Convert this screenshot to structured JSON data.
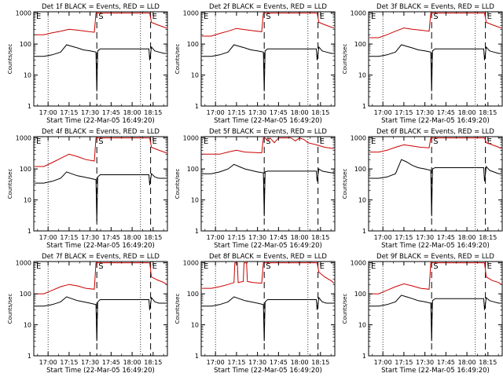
{
  "colors": {
    "events": "#000000",
    "lld": "#cc0000",
    "axis": "#000000"
  },
  "common": {
    "xlabel": "Start Time (22-Mar-05 16:49:20)",
    "ylabel": "Counts/sec",
    "xticks": [
      "17:00",
      "17:15",
      "17:30",
      "17:45",
      "18:00",
      "18:15"
    ],
    "yticks": [
      "1",
      "10",
      "100",
      "1000"
    ],
    "markers": {
      "dotted": [
        17.0,
        18.1
      ],
      "dashed": [
        17.58,
        18.22
      ]
    },
    "marker_labels": [
      "E",
      "S",
      "E"
    ]
  },
  "chart_data": [
    {
      "type": "line",
      "title": "Det 1f BLACK = Events, RED = LLD",
      "xlim": [
        16.83,
        18.42
      ],
      "ylim": [
        1,
        1100
      ],
      "yscale": "log",
      "series": [
        {
          "name": "Events",
          "x": [
            16.84,
            16.95,
            17.05,
            17.15,
            17.22,
            17.28,
            17.35,
            17.42,
            17.5,
            17.57,
            17.58,
            17.59,
            17.62,
            17.7,
            17.8,
            17.95,
            18.1,
            18.2,
            18.21,
            18.23,
            18.27,
            18.32,
            18.38,
            18.41
          ],
          "values": [
            40,
            40,
            45,
            55,
            95,
            85,
            75,
            65,
            60,
            55,
            3,
            60,
            70,
            70,
            70,
            70,
            70,
            70,
            30,
            80,
            60,
            55,
            50,
            50
          ]
        },
        {
          "name": "LLD",
          "x": [
            16.84,
            16.95,
            17.05,
            17.15,
            17.25,
            17.35,
            17.45,
            17.55,
            17.57,
            17.59,
            17.63,
            17.7,
            17.8,
            17.95,
            18.1,
            18.2,
            18.21,
            18.23,
            18.3,
            18.38,
            18.41
          ],
          "values": [
            200,
            200,
            230,
            260,
            300,
            280,
            260,
            240,
            1000,
            1000,
            1000,
            1000,
            1000,
            1000,
            1000,
            1000,
            1000,
            500,
            420,
            350,
            330
          ]
        }
      ]
    },
    {
      "type": "line",
      "title": "Det 2f BLACK = Events, RED = LLD",
      "xlim": [
        16.83,
        18.42
      ],
      "ylim": [
        1,
        1100
      ],
      "yscale": "log",
      "series": [
        {
          "name": "Events",
          "x": [
            16.84,
            16.95,
            17.05,
            17.15,
            17.22,
            17.28,
            17.35,
            17.42,
            17.5,
            17.57,
            17.58,
            17.59,
            17.62,
            17.7,
            17.8,
            17.95,
            18.1,
            18.2,
            18.21,
            18.23,
            18.27,
            18.32,
            18.38,
            18.41
          ],
          "values": [
            40,
            40,
            45,
            55,
            95,
            85,
            75,
            65,
            60,
            55,
            3,
            60,
            70,
            70,
            70,
            70,
            70,
            70,
            30,
            80,
            60,
            55,
            50,
            50
          ]
        },
        {
          "name": "LLD",
          "x": [
            16.84,
            16.95,
            17.05,
            17.15,
            17.25,
            17.35,
            17.45,
            17.55,
            17.57,
            17.59,
            17.63,
            17.7,
            17.8,
            17.95,
            18.1,
            18.2,
            18.21,
            18.23,
            18.3,
            18.38,
            18.41
          ],
          "values": [
            180,
            180,
            220,
            260,
            320,
            290,
            270,
            250,
            1000,
            1000,
            1000,
            1000,
            1000,
            1000,
            1000,
            1000,
            1000,
            500,
            420,
            350,
            330
          ]
        }
      ]
    },
    {
      "type": "line",
      "title": "Det 3f BLACK = Events, RED = LLD",
      "xlim": [
        16.83,
        18.42
      ],
      "ylim": [
        1,
        1100
      ],
      "yscale": "log",
      "series": [
        {
          "name": "Events",
          "x": [
            16.84,
            16.95,
            17.05,
            17.15,
            17.22,
            17.28,
            17.35,
            17.42,
            17.5,
            17.57,
            17.58,
            17.59,
            17.62,
            17.7,
            17.8,
            17.95,
            18.1,
            18.2,
            18.21,
            18.23,
            18.27,
            18.32,
            18.38,
            18.41
          ],
          "values": [
            40,
            40,
            45,
            55,
            95,
            85,
            75,
            65,
            60,
            55,
            3,
            60,
            70,
            70,
            70,
            70,
            70,
            70,
            30,
            80,
            60,
            55,
            50,
            50
          ]
        },
        {
          "name": "LLD",
          "x": [
            16.84,
            16.95,
            17.05,
            17.15,
            17.25,
            17.35,
            17.45,
            17.55,
            17.57,
            17.59,
            17.63,
            17.7,
            17.8,
            17.95,
            18.1,
            18.2,
            18.21,
            18.23,
            18.3,
            18.38,
            18.41
          ],
          "values": [
            160,
            160,
            200,
            260,
            330,
            300,
            280,
            260,
            1000,
            1000,
            1000,
            1000,
            1000,
            1000,
            1000,
            1000,
            1000,
            500,
            420,
            350,
            330
          ]
        }
      ]
    },
    {
      "type": "line",
      "title": "Det 4f BLACK = Events, RED = LLD",
      "xlim": [
        16.83,
        18.42
      ],
      "ylim": [
        1,
        1100
      ],
      "yscale": "log",
      "series": [
        {
          "name": "Events",
          "x": [
            16.84,
            16.95,
            17.05,
            17.15,
            17.22,
            17.28,
            17.35,
            17.42,
            17.5,
            17.57,
            17.58,
            17.59,
            17.62,
            17.7,
            17.8,
            17.95,
            18.1,
            18.2,
            18.21,
            18.23,
            18.27,
            18.32,
            18.38,
            18.41
          ],
          "values": [
            35,
            35,
            40,
            50,
            80,
            70,
            60,
            55,
            50,
            45,
            2,
            55,
            65,
            65,
            65,
            65,
            65,
            65,
            30,
            70,
            55,
            50,
            50,
            50
          ]
        },
        {
          "name": "LLD",
          "x": [
            16.84,
            16.95,
            17.05,
            17.15,
            17.25,
            17.35,
            17.45,
            17.55,
            17.57,
            17.59,
            17.63,
            17.7,
            17.8,
            17.95,
            18.1,
            18.2,
            18.21,
            18.23,
            18.3,
            18.38,
            18.41
          ],
          "values": [
            120,
            120,
            160,
            220,
            300,
            250,
            200,
            180,
            1000,
            1000,
            1000,
            1000,
            1000,
            1000,
            1000,
            1000,
            1000,
            500,
            420,
            350,
            330
          ]
        }
      ]
    },
    {
      "type": "line",
      "title": "Det 5f BLACK = Events, RED = LLD",
      "xlim": [
        16.83,
        18.42
      ],
      "ylim": [
        1,
        1100
      ],
      "yscale": "log",
      "series": [
        {
          "name": "Events",
          "x": [
            16.84,
            16.95,
            17.05,
            17.15,
            17.22,
            17.28,
            17.35,
            17.42,
            17.5,
            17.57,
            17.58,
            17.59,
            17.62,
            17.7,
            17.8,
            17.95,
            18.1,
            18.2,
            18.21,
            18.23,
            18.27,
            18.32,
            18.38,
            18.41
          ],
          "values": [
            70,
            70,
            80,
            100,
            140,
            120,
            100,
            90,
            80,
            75,
            3,
            80,
            85,
            85,
            85,
            85,
            85,
            85,
            40,
            100,
            85,
            80,
            75,
            75
          ]
        },
        {
          "name": "LLD",
          "x": [
            16.84,
            16.95,
            17.05,
            17.15,
            17.25,
            17.35,
            17.45,
            17.55,
            17.57,
            17.59,
            17.62,
            17.65,
            17.7,
            17.75,
            17.8,
            17.9,
            17.95,
            18.0,
            18.05,
            18.1,
            18.2,
            18.3,
            18.41
          ],
          "values": [
            300,
            300,
            300,
            350,
            400,
            350,
            340,
            330,
            1000,
            1000,
            800,
            1000,
            700,
            1000,
            1000,
            1000,
            800,
            1000,
            900,
            700,
            600,
            500,
            450
          ]
        }
      ]
    },
    {
      "type": "line",
      "title": "Det 6f BLACK = Events, RED = LLD",
      "xlim": [
        16.83,
        18.42
      ],
      "ylim": [
        1,
        1100
      ],
      "yscale": "log",
      "series": [
        {
          "name": "Events",
          "x": [
            16.84,
            16.95,
            17.05,
            17.15,
            17.22,
            17.28,
            17.35,
            17.42,
            17.5,
            17.57,
            17.58,
            17.59,
            17.62,
            17.7,
            17.8,
            17.95,
            18.1,
            18.2,
            18.21,
            18.23,
            18.27,
            18.32,
            18.38,
            18.41
          ],
          "values": [
            50,
            50,
            55,
            70,
            200,
            170,
            130,
            110,
            100,
            90,
            3,
            100,
            110,
            110,
            110,
            110,
            110,
            110,
            40,
            120,
            90,
            80,
            70,
            70
          ]
        },
        {
          "name": "LLD",
          "x": [
            16.84,
            16.95,
            17.05,
            17.15,
            17.25,
            17.35,
            17.45,
            17.55,
            17.57,
            17.59,
            17.63,
            17.7,
            17.8,
            17.95,
            18.1,
            18.2,
            18.21,
            18.23,
            18.3,
            18.38,
            18.41
          ],
          "values": [
            350,
            350,
            400,
            500,
            600,
            550,
            500,
            480,
            1000,
            1000,
            1000,
            1000,
            1000,
            1000,
            1000,
            1000,
            1000,
            700,
            600,
            500,
            450
          ]
        }
      ]
    },
    {
      "type": "line",
      "title": "Det 7f BLACK = Events, RED = LLD",
      "xlim": [
        16.83,
        18.42
      ],
      "ylim": [
        1,
        1100
      ],
      "yscale": "log",
      "series": [
        {
          "name": "Events",
          "x": [
            16.84,
            16.95,
            17.05,
            17.15,
            17.22,
            17.28,
            17.35,
            17.42,
            17.5,
            17.57,
            17.58,
            17.59,
            17.62,
            17.7,
            17.8,
            17.95,
            18.1,
            18.2,
            18.21,
            18.23,
            18.27,
            18.32,
            18.38,
            18.41
          ],
          "values": [
            40,
            40,
            45,
            55,
            80,
            70,
            60,
            55,
            50,
            45,
            3,
            55,
            65,
            65,
            65,
            65,
            65,
            65,
            30,
            75,
            55,
            50,
            50,
            50
          ]
        },
        {
          "name": "LLD",
          "x": [
            16.84,
            16.95,
            17.05,
            17.15,
            17.25,
            17.35,
            17.45,
            17.55,
            17.57,
            17.59,
            17.63,
            17.7,
            17.8,
            17.95,
            18.1,
            18.2,
            18.21,
            18.23,
            18.3,
            18.38,
            18.41
          ],
          "values": [
            100,
            100,
            130,
            170,
            200,
            180,
            150,
            140,
            1000,
            1000,
            1000,
            1000,
            1000,
            1000,
            1000,
            1000,
            1000,
            350,
            280,
            230,
            200
          ]
        }
      ]
    },
    {
      "type": "line",
      "title": "Det 8f BLACK = Events, RED = LLD",
      "xlim": [
        16.83,
        18.42
      ],
      "ylim": [
        1,
        1100
      ],
      "yscale": "log",
      "series": [
        {
          "name": "Events",
          "x": [
            16.84,
            16.95,
            17.05,
            17.15,
            17.22,
            17.28,
            17.35,
            17.42,
            17.5,
            17.57,
            17.58,
            17.59,
            17.62,
            17.7,
            17.8,
            17.95,
            18.1,
            18.2,
            18.21,
            18.23,
            18.27,
            18.32,
            18.38,
            18.41
          ],
          "values": [
            40,
            40,
            45,
            55,
            80,
            70,
            60,
            55,
            50,
            45,
            3,
            55,
            65,
            65,
            65,
            65,
            65,
            65,
            30,
            75,
            55,
            50,
            50,
            50
          ]
        },
        {
          "name": "LLD",
          "x": [
            16.84,
            16.95,
            17.05,
            17.15,
            17.22,
            17.23,
            17.26,
            17.27,
            17.33,
            17.34,
            17.37,
            17.38,
            17.45,
            17.55,
            17.57,
            17.59,
            17.63,
            17.7,
            17.8,
            17.95,
            18.1,
            18.2,
            18.21,
            18.23,
            18.3,
            18.38,
            18.41
          ],
          "values": [
            150,
            150,
            170,
            200,
            230,
            1000,
            1000,
            230,
            250,
            1000,
            1000,
            250,
            230,
            220,
            1000,
            1000,
            1000,
            1000,
            1000,
            1000,
            1000,
            1000,
            1000,
            500,
            350,
            260,
            220
          ]
        }
      ]
    },
    {
      "type": "line",
      "title": "Det 9f BLACK = Events, RED = LLD",
      "xlim": [
        16.83,
        18.42
      ],
      "ylim": [
        1,
        1100
      ],
      "yscale": "log",
      "series": [
        {
          "name": "Events",
          "x": [
            16.84,
            16.95,
            17.05,
            17.15,
            17.22,
            17.28,
            17.35,
            17.42,
            17.5,
            17.57,
            17.58,
            17.59,
            17.62,
            17.7,
            17.8,
            17.95,
            18.1,
            18.2,
            18.21,
            18.23,
            18.27,
            18.32,
            18.38,
            18.41
          ],
          "values": [
            40,
            40,
            45,
            55,
            90,
            80,
            70,
            60,
            55,
            50,
            3,
            60,
            70,
            70,
            70,
            70,
            70,
            70,
            30,
            75,
            60,
            55,
            50,
            50
          ]
        },
        {
          "name": "LLD",
          "x": [
            16.84,
            16.95,
            17.05,
            17.15,
            17.25,
            17.35,
            17.45,
            17.55,
            17.57,
            17.59,
            17.63,
            17.7,
            17.8,
            17.95,
            18.1,
            18.2,
            18.21,
            18.23,
            18.3,
            18.38,
            18.41
          ],
          "values": [
            100,
            100,
            130,
            170,
            210,
            180,
            150,
            140,
            1000,
            1000,
            1000,
            1000,
            1000,
            1000,
            1000,
            1000,
            1000,
            350,
            270,
            230,
            200
          ]
        }
      ]
    }
  ]
}
